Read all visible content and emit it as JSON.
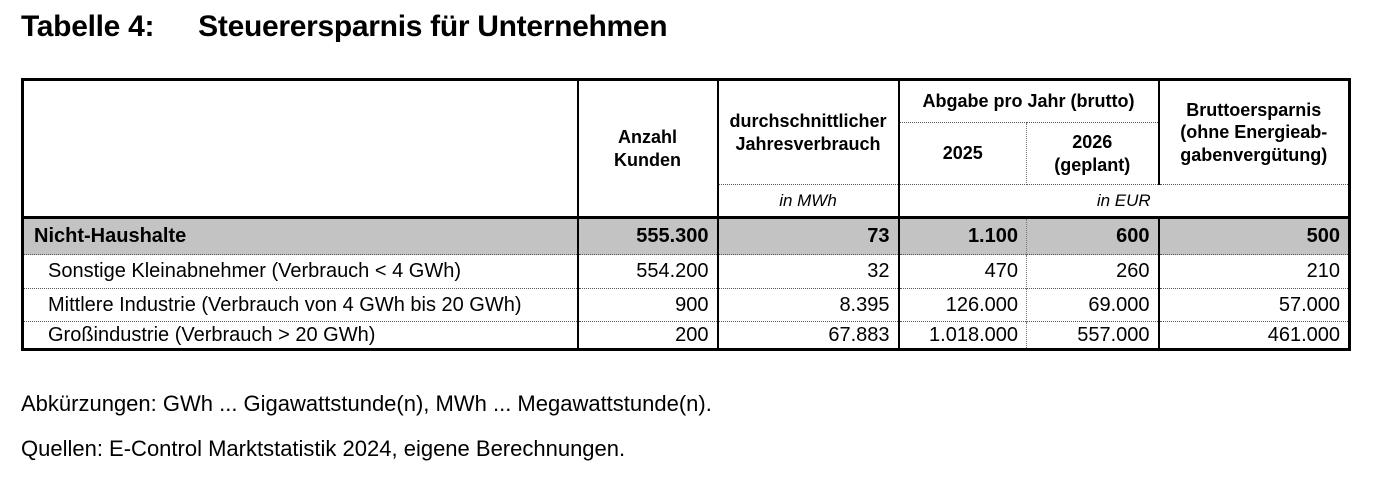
{
  "title": {
    "label": "Tabelle 4:",
    "text": "Steuerersparnis für Unternehmen"
  },
  "table": {
    "header": {
      "anzahl": "Anzahl\nKunden",
      "verbrauch": "durchschnittlicher\nJahresverbrauch",
      "abgabe_group": "Abgabe pro Jahr (brutto)",
      "y2025": "2025",
      "y2026": "2026\n(geplant)",
      "ersparnis": "Bruttoersparnis\n(ohne Energieab-\ngabenvergütung)",
      "unit_mwh": "in MWh",
      "unit_eur": "in EUR"
    },
    "rows": [
      {
        "label": "Nicht-Haushalte",
        "anzahl": "555.300",
        "verbrauch": "73",
        "y2025": "1.100",
        "y2026": "600",
        "ersparnis": "500"
      },
      {
        "label": "Sonstige Kleinabnehmer (Verbrauch < 4 GWh)",
        "anzahl": "554.200",
        "verbrauch": "32",
        "y2025": "470",
        "y2026": "260",
        "ersparnis": "210"
      },
      {
        "label": "Mittlere Industrie  (Verbrauch von 4 GWh bis 20 GWh)",
        "anzahl": "900",
        "verbrauch": "8.395",
        "y2025": "126.000",
        "y2026": "69.000",
        "ersparnis": "57.000"
      },
      {
        "label": "Großindustrie (Verbrauch > 20 GWh)",
        "anzahl": "200",
        "verbrauch": "67.883",
        "y2025": "1.018.000",
        "y2026": "557.000",
        "ersparnis": "461.000"
      }
    ],
    "highlight_color": "#c3c3c3"
  },
  "footnotes": {
    "abbreviations": "Abkürzungen: GWh ... Gigawattstunde(n), MWh ... Megawattstunde(n).",
    "sources": "Quellen: E-Control Marktstatistik 2024, eigene Berechnungen."
  }
}
